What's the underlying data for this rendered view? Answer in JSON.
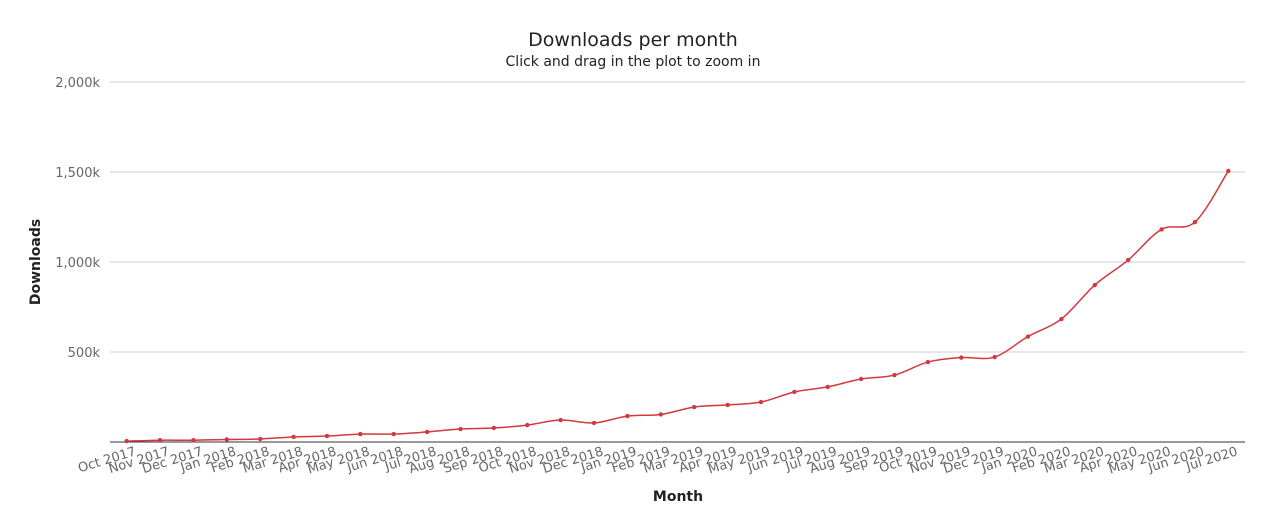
{
  "chart_data": {
    "type": "line",
    "title": "Downloads per month",
    "subtitle": "Click and drag in the plot to zoom in",
    "x_label": "Month",
    "y_label": "Downloads",
    "categories": [
      "Oct 2017",
      "Nov 2017",
      "Dec 2017",
      "Jan 2018",
      "Feb 2018",
      "Mar 2018",
      "Apr 2018",
      "May 2018",
      "Jun 2018",
      "Jul 2018",
      "Aug 2018",
      "Sep 2018",
      "Oct 2018",
      "Nov 2018",
      "Dec 2018",
      "Jan 2019",
      "Feb 2019",
      "Mar 2019",
      "Apr 2019",
      "May 2019",
      "Jun 2019",
      "Jul 2019",
      "Aug 2019",
      "Sep 2019",
      "Oct 2019",
      "Nov 2019",
      "Dec 2019",
      "Jan 2020",
      "Feb 2020",
      "Mar 2020",
      "Apr 2020",
      "May 2020",
      "Jun 2020",
      "Jul 2020"
    ],
    "values": [
      5000,
      10000,
      10000,
      14000,
      17000,
      28000,
      33000,
      44000,
      44000,
      56000,
      72000,
      78000,
      94000,
      122000,
      106000,
      144000,
      153000,
      194000,
      206000,
      222000,
      278000,
      306000,
      350000,
      372000,
      444000,
      469000,
      472000,
      586000,
      683000,
      872000,
      1011000,
      1181000,
      1222000,
      1506000
    ],
    "color": "#d0393e",
    "ylim": [
      0,
      2000000
    ],
    "yticks": [
      {
        "value": 500000,
        "label": "500k"
      },
      {
        "value": 1000000,
        "label": "1,000k"
      },
      {
        "value": 1500000,
        "label": "1,500k"
      },
      {
        "value": 2000000,
        "label": "2,000k"
      }
    ],
    "grid": true
  }
}
